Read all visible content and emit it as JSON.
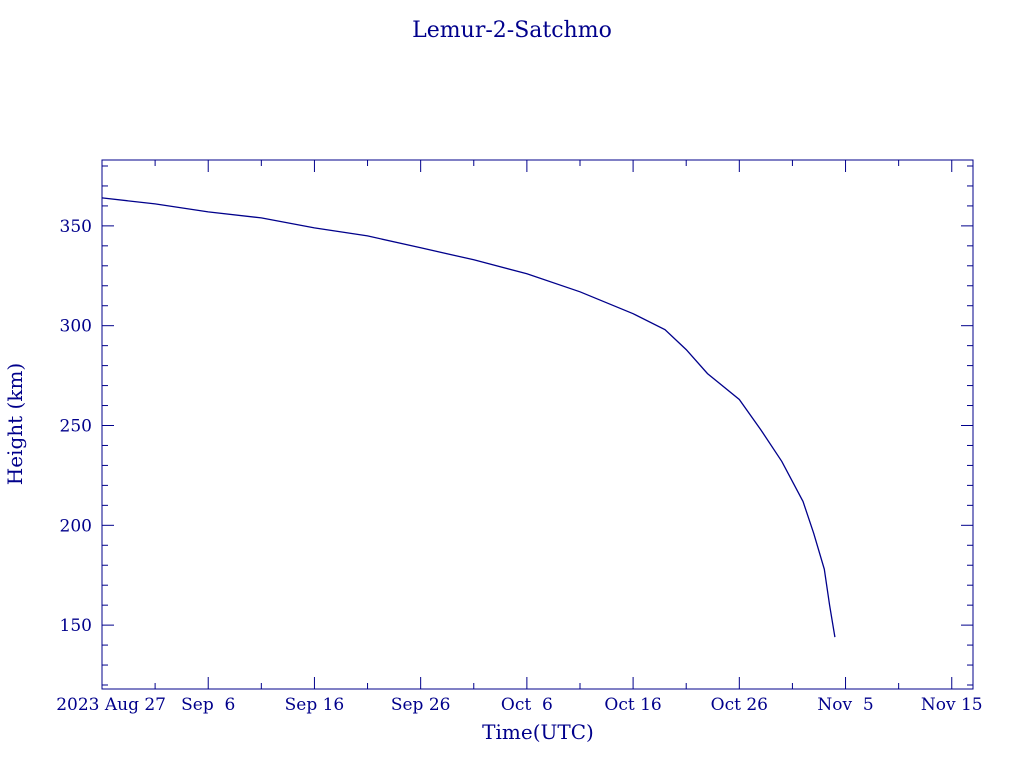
{
  "chart_data": {
    "type": "line",
    "title": "Lemur-2-Satchmo",
    "xlabel": "Time(UTC)",
    "ylabel": "Height (km)",
    "color": "#00008b",
    "grid": false,
    "legend": "none",
    "ylim": [
      118,
      383
    ],
    "ytick_values": [
      150,
      200,
      250,
      300,
      350
    ],
    "xlim": [
      "2023-08-27",
      "2023-11-17"
    ],
    "xticks": [
      {
        "date": "2023-08-27",
        "label": "2023 Aug 27"
      },
      {
        "date": "2023-09-06",
        "label": "Sep  6"
      },
      {
        "date": "2023-09-16",
        "label": "Sep 16"
      },
      {
        "date": "2023-09-26",
        "label": "Sep 26"
      },
      {
        "date": "2023-10-06",
        "label": "Oct  6"
      },
      {
        "date": "2023-10-16",
        "label": "Oct 16"
      },
      {
        "date": "2023-10-26",
        "label": "Oct 26"
      },
      {
        "date": "2023-11-05",
        "label": "Nov  5"
      },
      {
        "date": "2023-11-15",
        "label": "Nov 15"
      }
    ],
    "series": [
      {
        "x": [
          "2023-08-27",
          "2023-09-01",
          "2023-09-06",
          "2023-09-11",
          "2023-09-16",
          "2023-09-21",
          "2023-09-26",
          "2023-10-01",
          "2023-10-06",
          "2023-10-11",
          "2023-10-16",
          "2023-10-19",
          "2023-10-21",
          "2023-10-23",
          "2023-10-26",
          "2023-10-28",
          "2023-10-30",
          "2023-11-01",
          "2023-11-02",
          "2023-11-03",
          "2023-11-03T12:00",
          "2023-11-04"
        ],
        "y": [
          364,
          361,
          357,
          354,
          349,
          345,
          339,
          333,
          326,
          317,
          306,
          298,
          288,
          276,
          263,
          248,
          232,
          212,
          196,
          178,
          160,
          144
        ]
      }
    ]
  }
}
